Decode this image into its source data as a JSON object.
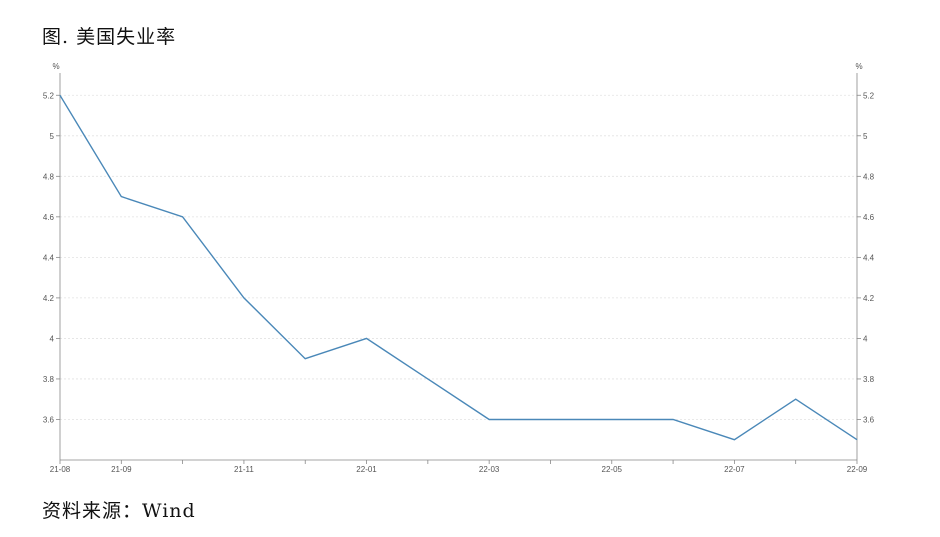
{
  "title": "图. 美国失业率",
  "source": "资料来源：Wind",
  "chart_data": {
    "type": "line",
    "x": [
      "21-08",
      "21-09",
      "21-10",
      "21-11",
      "21-12",
      "22-01",
      "22-02",
      "22-03",
      "22-04",
      "22-05",
      "22-06",
      "22-07",
      "22-08",
      "22-09"
    ],
    "x_tick_labels": [
      "21-08",
      "21-09",
      "21-11",
      "22-01",
      "22-03",
      "22-05",
      "22-07",
      "22-09"
    ],
    "series": [
      {
        "values": [
          5.2,
          4.7,
          4.6,
          4.2,
          3.9,
          4.0,
          3.8,
          3.6,
          3.6,
          3.6,
          3.6,
          3.5,
          3.7,
          3.5
        ]
      }
    ],
    "y_unit_left": "%",
    "y_unit_right": "%",
    "ylim": [
      3.4,
      5.3
    ],
    "y_ticks": [
      3.6,
      3.8,
      4,
      4.2,
      4.4,
      4.6,
      4.8,
      5,
      5.2
    ],
    "grid": true,
    "line_color": "#4a88b8",
    "grid_color": "#e2e2e2",
    "axis_color": "#888888"
  }
}
